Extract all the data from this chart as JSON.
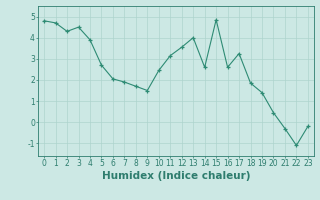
{
  "x": [
    0,
    1,
    2,
    3,
    4,
    5,
    6,
    7,
    8,
    9,
    10,
    11,
    12,
    13,
    14,
    15,
    16,
    17,
    18,
    19,
    20,
    21,
    22,
    23
  ],
  "y": [
    4.8,
    4.7,
    4.3,
    4.5,
    3.9,
    2.7,
    2.05,
    1.9,
    1.7,
    1.5,
    2.45,
    3.15,
    3.55,
    4.0,
    2.6,
    4.85,
    2.6,
    3.25,
    1.85,
    1.4,
    0.45,
    -0.3,
    -1.1,
    -0.2
  ],
  "line_color": "#2e8b74",
  "marker": "+",
  "marker_color": "#2e8b74",
  "bg_color": "#cce8e4",
  "grid_color": "#aed4ce",
  "xlabel": "Humidex (Indice chaleur)",
  "xlim": [
    -0.5,
    23.5
  ],
  "ylim": [
    -1.6,
    5.5
  ],
  "yticks": [
    -1,
    0,
    1,
    2,
    3,
    4,
    5
  ],
  "xticks": [
    0,
    1,
    2,
    3,
    4,
    5,
    6,
    7,
    8,
    9,
    10,
    11,
    12,
    13,
    14,
    15,
    16,
    17,
    18,
    19,
    20,
    21,
    22,
    23
  ],
  "tick_fontsize": 5.5,
  "xlabel_fontsize": 7.5,
  "axis_color": "#2e7d6e",
  "spine_color": "#2e7d6e"
}
